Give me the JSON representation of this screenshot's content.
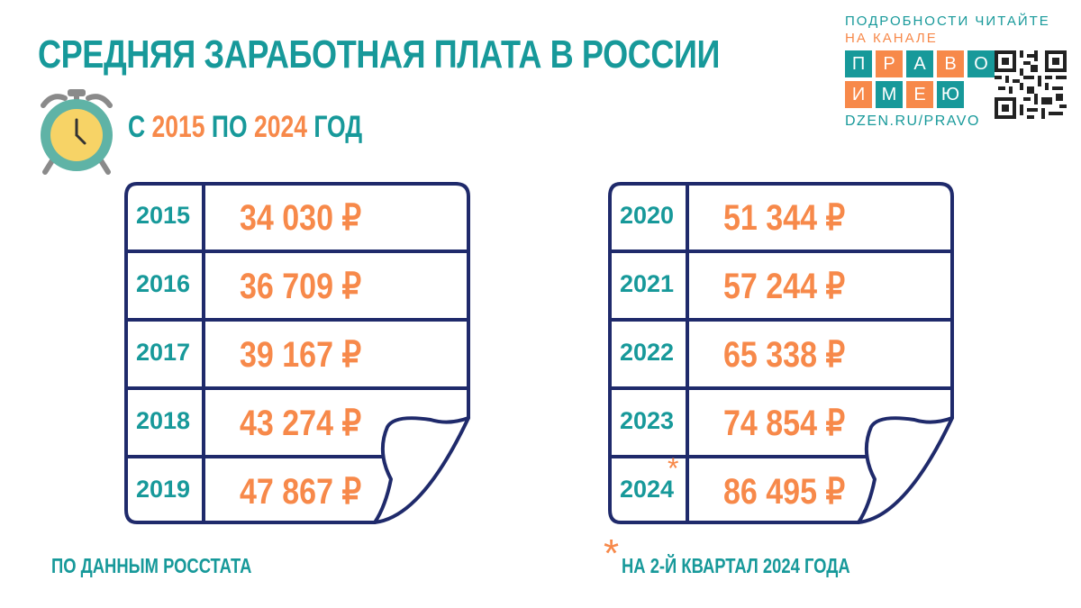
{
  "title": "СРЕДНЯЯ ЗАРАБОТНАЯ ПЛАТА В РОССИИ",
  "subtitle": {
    "prefix": "С",
    "from_year": "2015",
    "middle": "ПО",
    "to_year": "2024",
    "suffix": "ГОД"
  },
  "brand": {
    "line1": "ПОДРОБНОСТИ ЧИТАЙТЕ",
    "line2": "НА КАНАЛЕ",
    "row1": [
      "П",
      "Р",
      "А",
      "В",
      "О"
    ],
    "row2": [
      "И",
      "М",
      "Е",
      "Ю"
    ],
    "url": "DZEN.RU/PRAVO"
  },
  "table_left": [
    {
      "year": "2015",
      "value": "34 030 ₽"
    },
    {
      "year": "2016",
      "value": "36 709 ₽"
    },
    {
      "year": "2017",
      "value": "39 167 ₽"
    },
    {
      "year": "2018",
      "value": "43 274 ₽"
    },
    {
      "year": "2019",
      "value": "47 867 ₽"
    }
  ],
  "table_right": [
    {
      "year": "2020",
      "value": "51 344 ₽"
    },
    {
      "year": "2021",
      "value": "57 244 ₽"
    },
    {
      "year": "2022",
      "value": "65 338 ₽"
    },
    {
      "year": "2023",
      "value": "74 854 ₽"
    },
    {
      "year": "2024",
      "value": "86 495 ₽"
    }
  ],
  "asterisk": "*",
  "footnote_left": "ПО ДАННЫМ РОССТАТА",
  "footnote_right": "НА 2-Й КВАРТАЛ 2024 ГОДА",
  "colors": {
    "teal": "#17999a",
    "orange": "#f7894a",
    "navy": "#1f2a6b"
  },
  "icons": [
    "alarm-clock-icon",
    "qr-code-icon"
  ]
}
